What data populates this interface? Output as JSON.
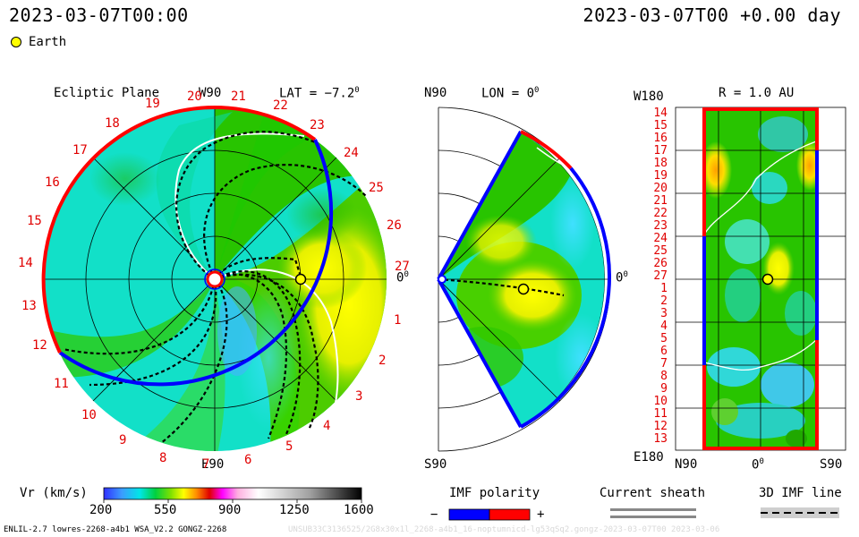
{
  "header": {
    "datetime_left": "2023-03-07T00:00",
    "datetime_right": "2023-03-07T00 +0.00 day",
    "earth_legend": "Earth"
  },
  "panels": {
    "ecliptic": {
      "title": "Ecliptic Plane",
      "top_label": "W90",
      "bottom_label": "E90",
      "lat_label": "LAT = −7.2",
      "lat_unit": "0",
      "zero_label": "0",
      "zero_unit": "0",
      "carrington_numbers": [
        "20",
        "21",
        "22",
        "23",
        "24",
        "25",
        "26",
        "27",
        "1",
        "2",
        "3",
        "4",
        "5",
        "6",
        "7",
        "8",
        "9",
        "10",
        "11",
        "12",
        "13",
        "14",
        "15",
        "16",
        "17",
        "18",
        "19"
      ]
    },
    "meridional": {
      "top_label": "N90",
      "bottom_label": "S90",
      "lon_label": "LON = 0",
      "lon_unit": "0",
      "zero_label": "0",
      "zero_unit": "0"
    },
    "synoptic": {
      "top_label": "W180",
      "bottom_label": "E180",
      "r_label": "R = 1.0 AU",
      "row_labels": [
        "14",
        "15",
        "16",
        "17",
        "18",
        "19",
        "20",
        "21",
        "22",
        "23",
        "24",
        "25",
        "26",
        "27",
        "1",
        "2",
        "3",
        "4",
        "5",
        "6",
        "7",
        "8",
        "9",
        "10",
        "11",
        "12",
        "13"
      ],
      "x_left": "N90",
      "x_mid": "0",
      "x_mid_unit": "0",
      "x_right": "S90"
    }
  },
  "legend": {
    "vr_label": "Vr (km/s)",
    "vr_ticks": [
      "200",
      "550",
      "900",
      "1250",
      "1600"
    ],
    "imf_label": "IMF polarity",
    "imf_minus": "−",
    "imf_plus": "+",
    "sheath_label": "Current sheath",
    "imf3d_label": "3D IMF line"
  },
  "footer": {
    "left": "ENLIL-2.7 lowres-2268-a4b1 WSA_V2.2 GONGZ-2268",
    "right": "UNSUB33C3136525/2G8x30x1l_2268-a4b1_16-noptumnicd-lg53qSq2.gongz-2023-03-07T00   2023-03-06"
  },
  "colors": {
    "imf_negative": "#0000ff",
    "imf_positive": "#ff0000",
    "earth_marker": "#ffff00"
  }
}
